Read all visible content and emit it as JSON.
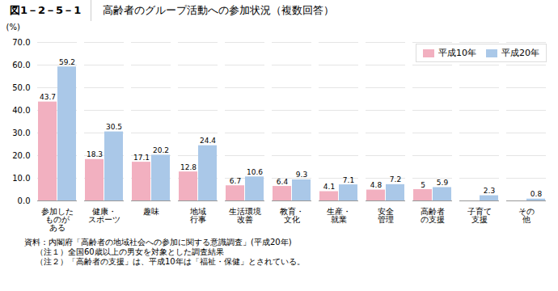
{
  "chart_data": {
    "type": "bar",
    "title": "高齢者のグループ活動への参加状況（複数回答）",
    "subtitle": "図1－2－5－1",
    "categories": [
      "参加した\nものが\nある",
      "健康・\nスポーツ",
      "趣味",
      "地域\n行事",
      "生活環境\n改善",
      "教育・\n文化",
      "生産・\n就業",
      "安全\n管理",
      "高齢者\nの支援",
      "子育て\n支援",
      "その\n他"
    ],
    "series": [
      {
        "name": "平成10年",
        "color": "#f2b0c0",
        "values": [
          43.7,
          18.3,
          17.1,
          12.8,
          6.7,
          6.4,
          4.1,
          4.8,
          5.0,
          null,
          null
        ]
      },
      {
        "name": "平成20年",
        "color": "#aac8e8",
        "values": [
          59.2,
          30.5,
          20.2,
          24.4,
          10.6,
          9.3,
          7.1,
          7.2,
          5.9,
          2.3,
          0.8
        ]
      }
    ],
    "ylabel": "(%)",
    "ylim": [
      0,
      70
    ],
    "yticks": [
      {
        "value": 0,
        "label": "0.0"
      },
      {
        "value": 10,
        "label": "10.0"
      },
      {
        "value": 20,
        "label": "20.0"
      },
      {
        "value": 30,
        "label": "30.0"
      },
      {
        "value": 40,
        "label": "40.0"
      },
      {
        "value": 50,
        "label": "50.0"
      },
      {
        "value": 60,
        "label": "60.0"
      },
      {
        "value": 70,
        "label": "70.0"
      }
    ],
    "grid": true,
    "legend": "upper right",
    "data_labels": true,
    "annotations": [
      "資料：内閣府「高齢者の地域社会への参加に関する意識調査」(平成20年)",
      "（注１）全国60歳以上の男女を対象とした調査結果",
      "（注２）「高齢者の支援」は、平成10年は「福祉・保健」とされている。"
    ]
  }
}
